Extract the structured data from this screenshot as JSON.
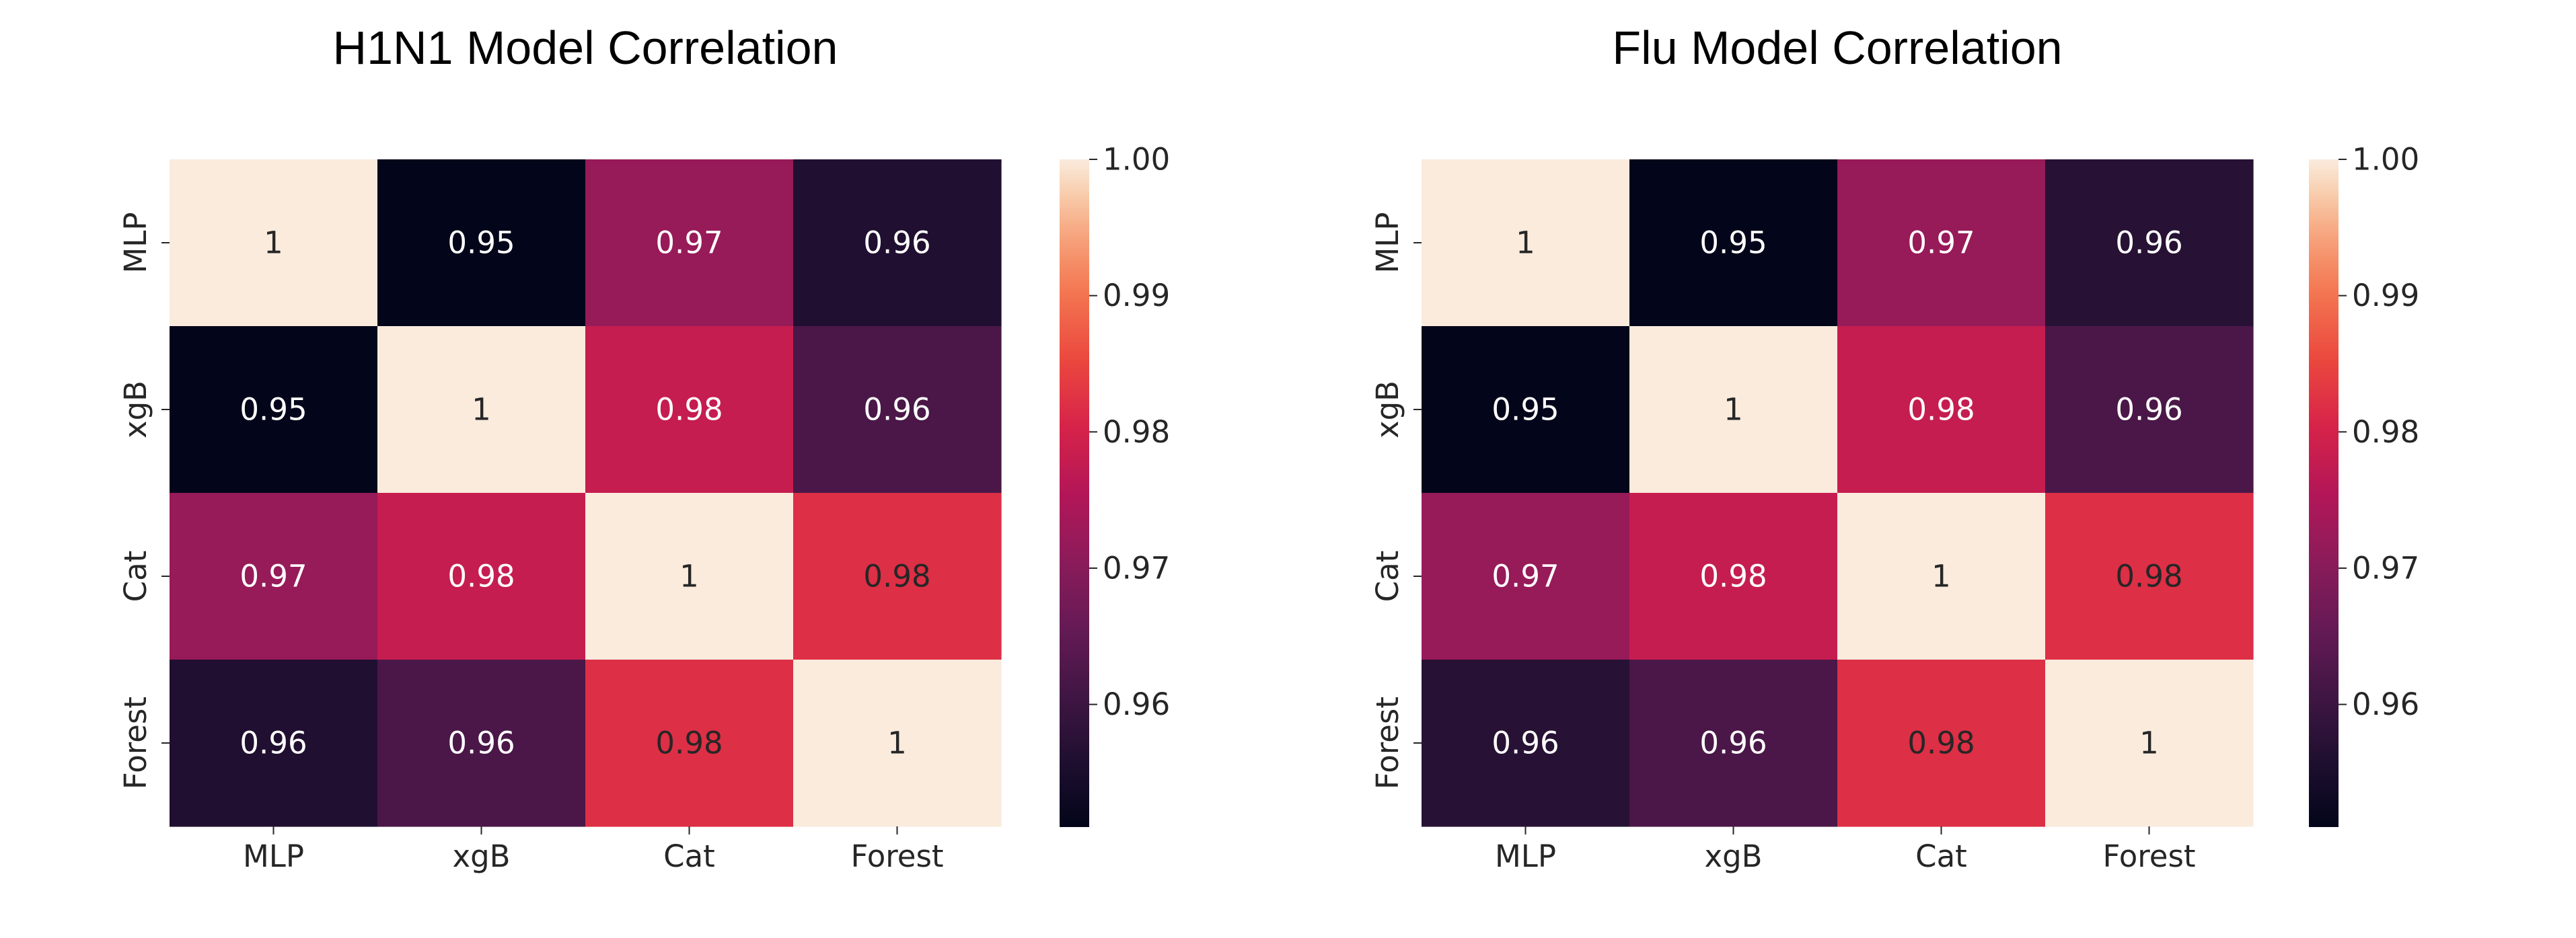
{
  "chart_data": [
    {
      "type": "heatmap",
      "title": "H1N1 Model Correlation",
      "xlabel": "",
      "ylabel": "",
      "x_categories": [
        "MLP",
        "xgB",
        "Cat",
        "Forest"
      ],
      "y_categories": [
        "MLP",
        "xgB",
        "Cat",
        "Forest"
      ],
      "values": [
        [
          1.0,
          0.951,
          0.972,
          0.956
        ],
        [
          0.951,
          1.0,
          0.978,
          0.962
        ],
        [
          0.972,
          0.978,
          1.0,
          0.982
        ],
        [
          0.956,
          0.962,
          0.982,
          1.0
        ]
      ],
      "annotations": [
        [
          "1",
          "0.95",
          "0.97",
          "0.96"
        ],
        [
          "0.95",
          "1",
          "0.98",
          "0.96"
        ],
        [
          "0.97",
          "0.98",
          "1",
          "0.98"
        ],
        [
          "0.96",
          "0.96",
          "0.98",
          "1"
        ]
      ],
      "colorbar": {
        "min": 0.951,
        "max": 1.0,
        "ticks": [
          1.0,
          0.99,
          0.98,
          0.97,
          0.96
        ],
        "tick_labels": [
          "1.00",
          "0.99",
          "0.98",
          "0.97",
          "0.96"
        ]
      },
      "colormap": "rocket"
    },
    {
      "type": "heatmap",
      "title": "Flu Model Correlation",
      "xlabel": "",
      "ylabel": "",
      "x_categories": [
        "MLP",
        "xgB",
        "Cat",
        "Forest"
      ],
      "y_categories": [
        "MLP",
        "xgB",
        "Cat",
        "Forest"
      ],
      "values": [
        [
          1.0,
          0.951,
          0.972,
          0.957
        ],
        [
          0.951,
          1.0,
          0.978,
          0.962
        ],
        [
          0.972,
          0.978,
          1.0,
          0.982
        ],
        [
          0.957,
          0.962,
          0.982,
          1.0
        ]
      ],
      "annotations": [
        [
          "1",
          "0.95",
          "0.97",
          "0.96"
        ],
        [
          "0.95",
          "1",
          "0.98",
          "0.96"
        ],
        [
          "0.97",
          "0.98",
          "1",
          "0.98"
        ],
        [
          "0.96",
          "0.96",
          "0.98",
          "1"
        ]
      ],
      "colorbar": {
        "min": 0.951,
        "max": 1.0,
        "ticks": [
          1.0,
          0.99,
          0.98,
          0.97,
          0.96
        ],
        "tick_labels": [
          "1.00",
          "0.99",
          "0.98",
          "0.97",
          "0.96"
        ]
      },
      "colormap": "rocket"
    }
  ]
}
